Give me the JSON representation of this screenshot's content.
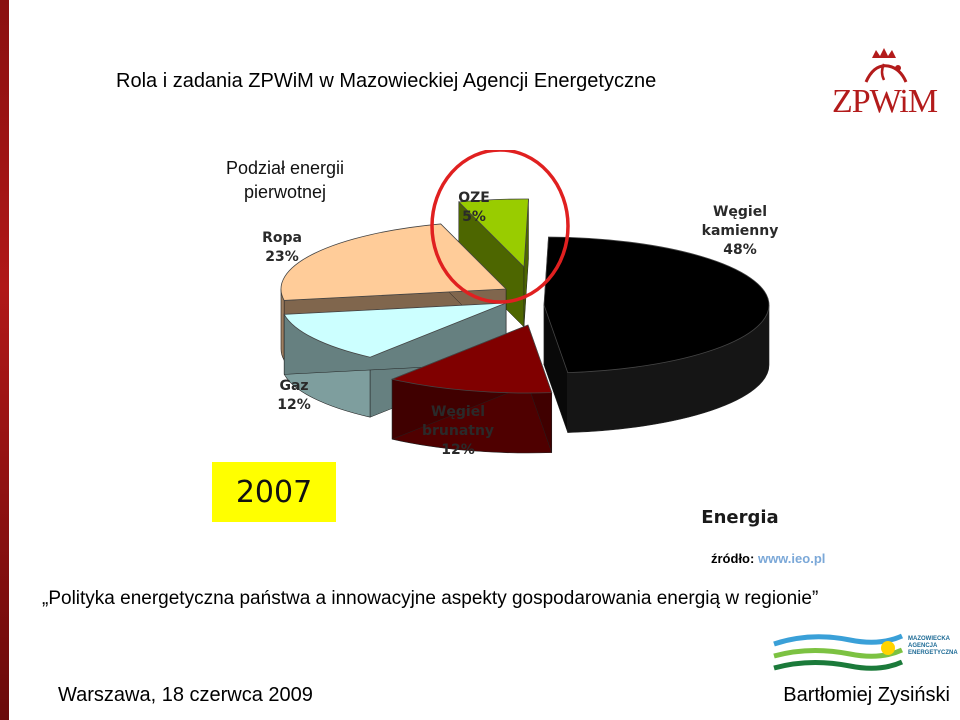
{
  "slide": {
    "title": "Rola i zadania ZPWiM w Mazowieckiej Agencji Energetyczne",
    "logo_text": "ZPWiM",
    "slogan": "„Polityka energetyczna państwa a innowacyjne aspekty gospodarowania energią w regionie”",
    "date_place": "Warszawa, 18 czerwca 2009",
    "author": "Bartłomiej Zysiński",
    "mae_logo_lines": [
      "MAZOWIECKA",
      "AGENCJA",
      "ENERGETYCZNA"
    ],
    "source_label": "źródło:",
    "source_link": "www.ieo.pl",
    "year_badge": "2007"
  },
  "chart_data": {
    "type": "pie",
    "title_lines": [
      "Podział energii",
      "pierwotnej"
    ],
    "footer_label": "Energia",
    "highlight": "OZE",
    "slices": [
      {
        "name": "Węgiel kamienny",
        "label_lines": [
          "Węgiel",
          "kamienny"
        ],
        "value": 48,
        "value_label": "48%",
        "color": "#000000"
      },
      {
        "name": "Węgiel brunatny",
        "label_lines": [
          "Węgiel",
          "brunatny"
        ],
        "value": 12,
        "value_label": "12%",
        "color": "#800000"
      },
      {
        "name": "Gaz",
        "label_lines": [
          "Gaz"
        ],
        "value": 12,
        "value_label": "12%",
        "color": "#ccffff"
      },
      {
        "name": "Ropa",
        "label_lines": [
          "Ropa"
        ],
        "value": 23,
        "value_label": "23%",
        "color": "#ffcc99"
      },
      {
        "name": "OZE",
        "label_lines": [
          "OZE"
        ],
        "value": 5,
        "value_label": "5%",
        "color": "#99cc00"
      }
    ],
    "highlight_color": "#e02020",
    "badge_color": "#ffff00"
  }
}
